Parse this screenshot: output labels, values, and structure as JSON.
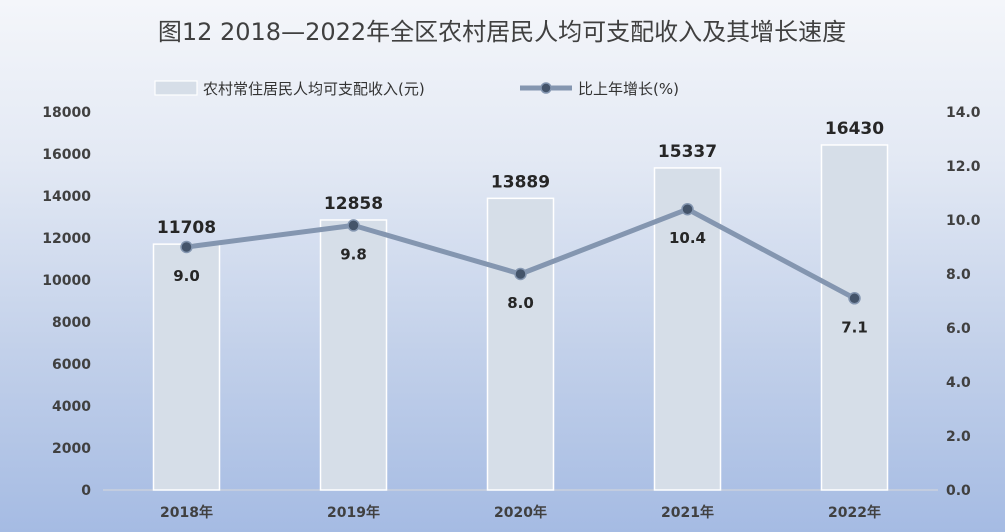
{
  "chart_data": {
    "type": "bar",
    "title": "图12   2018—2022年全区农村居民人均可支配收入及其增长速度",
    "categories": [
      "2018年",
      "2019年",
      "2020年",
      "2021年",
      "2022年"
    ],
    "series": [
      {
        "name": "农村常住居民人均可支配收入(元)",
        "type": "bar",
        "axis": "left",
        "values": [
          11708,
          12858,
          13889,
          15337,
          16430
        ]
      },
      {
        "name": "比上年增长(%)",
        "type": "line",
        "axis": "right",
        "values": [
          9.0,
          9.8,
          8.0,
          10.4,
          7.1
        ]
      }
    ],
    "y_left": {
      "ylim": [
        0,
        18000
      ],
      "ticks": [
        "0",
        "2000",
        "4000",
        "6000",
        "8000",
        "10000",
        "12000",
        "14000",
        "16000",
        "18000"
      ]
    },
    "y_right": {
      "ylim": [
        0,
        14
      ],
      "ticks": [
        "0.0",
        "2.0",
        "4.0",
        "6.0",
        "8.0",
        "10.0",
        "12.0",
        "14.0"
      ]
    },
    "bar_labels": [
      "11708",
      "12858",
      "13889",
      "15337",
      "16430"
    ],
    "line_labels": [
      "9.0",
      "9.8",
      "8.0",
      "10.4",
      "7.1"
    ],
    "grid": false,
    "legend_position": "top-center",
    "colors": {
      "bar_fill": "#d6dee8",
      "bar_stroke": "#ffffff",
      "line": "#8496b0",
      "marker": "#44546a",
      "marker_stroke": "#8496b0"
    }
  }
}
